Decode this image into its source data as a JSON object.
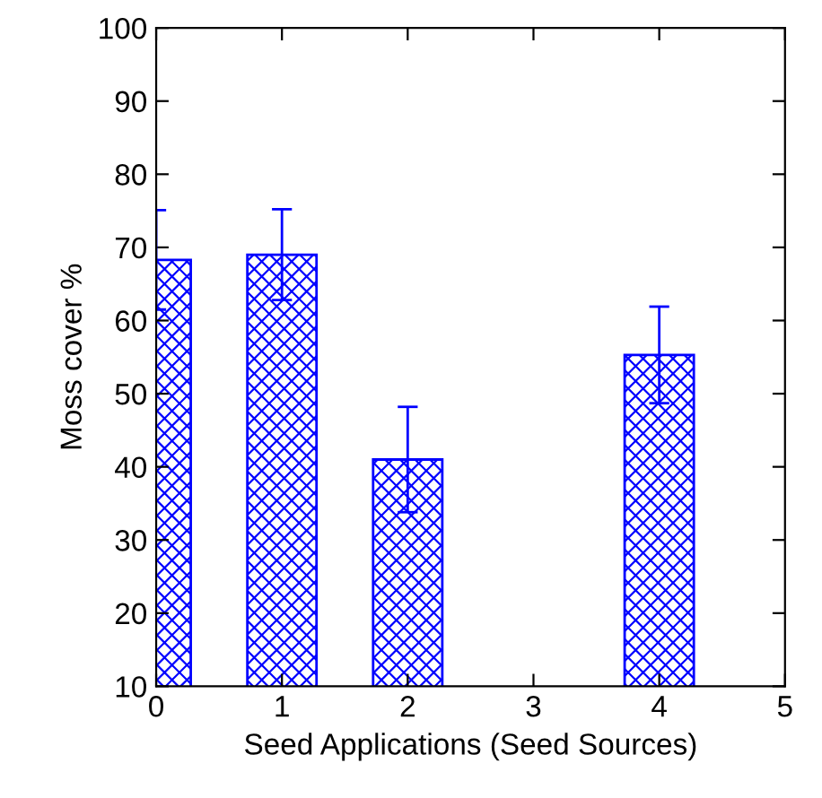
{
  "chart_data": {
    "type": "bar",
    "xlabel": "Seed Applications (Seed Sources)",
    "ylabel": "Moss cover %",
    "x": [
      0,
      1,
      2,
      4
    ],
    "series": [
      {
        "color": "#0000ff",
        "values": [
          68.3,
          69,
          41,
          55.3
        ],
        "errors": [
          6.8,
          6.2,
          7.2,
          6.6
        ]
      }
    ],
    "xlim": [
      0,
      5
    ],
    "xticks": [
      0,
      1,
      2,
      3,
      4,
      5
    ],
    "ylim": [
      10,
      100
    ],
    "yticks": [
      10,
      20,
      30,
      40,
      50,
      60,
      70,
      80,
      90,
      100
    ],
    "grid": false,
    "legend": false
  }
}
